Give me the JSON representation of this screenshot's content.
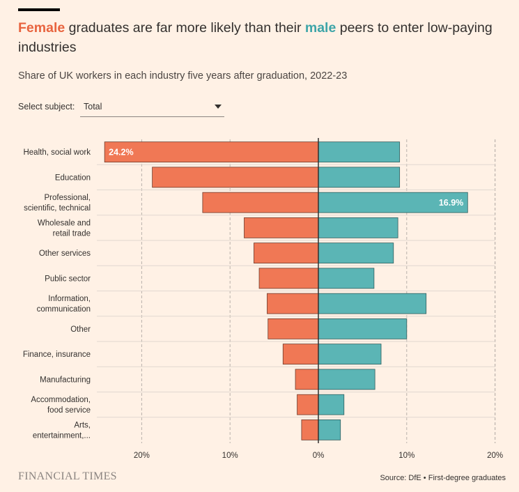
{
  "header": {
    "title_female": "Female",
    "title_mid": " graduates are far more likely than their ",
    "title_male": "male",
    "title_end": " peers to enter low-paying industries",
    "subtitle": "Share of UK workers in each industry five years after graduation, 2022-23"
  },
  "controls": {
    "select_label": "Select subject:",
    "select_value": "Total"
  },
  "colors": {
    "female": "#f07855",
    "male": "#5bb5b5",
    "female_text": "#e8643f",
    "male_text": "#3ea5a8"
  },
  "chart_data": {
    "type": "bar",
    "orientation": "horizontal-diverging",
    "title": "Female graduates are far more likely than their male peers to enter low-paying industries",
    "subtitle": "Share of UK workers in each industry five years after graduation, 2022-23",
    "categories": [
      [
        "Health, social work"
      ],
      [
        "Education"
      ],
      [
        "Professional,",
        "scientific, technical"
      ],
      [
        "Wholesale and",
        "retail trade"
      ],
      [
        "Other services"
      ],
      [
        "Public sector"
      ],
      [
        "Information,",
        "communication"
      ],
      [
        "Other"
      ],
      [
        "Finance, insurance"
      ],
      [
        "Manufacturing"
      ],
      [
        "Accommodation,",
        "food service"
      ],
      [
        "Arts,",
        "entertainment,..."
      ]
    ],
    "series": [
      {
        "name": "Female",
        "direction": "left",
        "values": [
          24.2,
          18.8,
          13.1,
          8.4,
          7.3,
          6.7,
          5.8,
          5.7,
          4.0,
          2.6,
          2.4,
          1.9
        ]
      },
      {
        "name": "Male",
        "direction": "right",
        "values": [
          9.2,
          9.2,
          16.9,
          9.0,
          8.5,
          6.3,
          12.2,
          10.0,
          7.1,
          6.4,
          2.9,
          2.5
        ]
      }
    ],
    "data_labels": [
      {
        "series": "Female",
        "category_index": 0,
        "text": "24.2%"
      },
      {
        "series": "Male",
        "category_index": 2,
        "text": "16.9%"
      }
    ],
    "xlim": [
      -25,
      20
    ],
    "xticks": [
      -20,
      -10,
      0,
      10,
      20
    ],
    "xtick_labels": [
      "20%",
      "10%",
      "0%",
      "10%",
      "20%"
    ],
    "grid": true
  },
  "footer": {
    "brand": "FINANCIAL TIMES",
    "source": "Source: DfE • First-degree graduates"
  }
}
